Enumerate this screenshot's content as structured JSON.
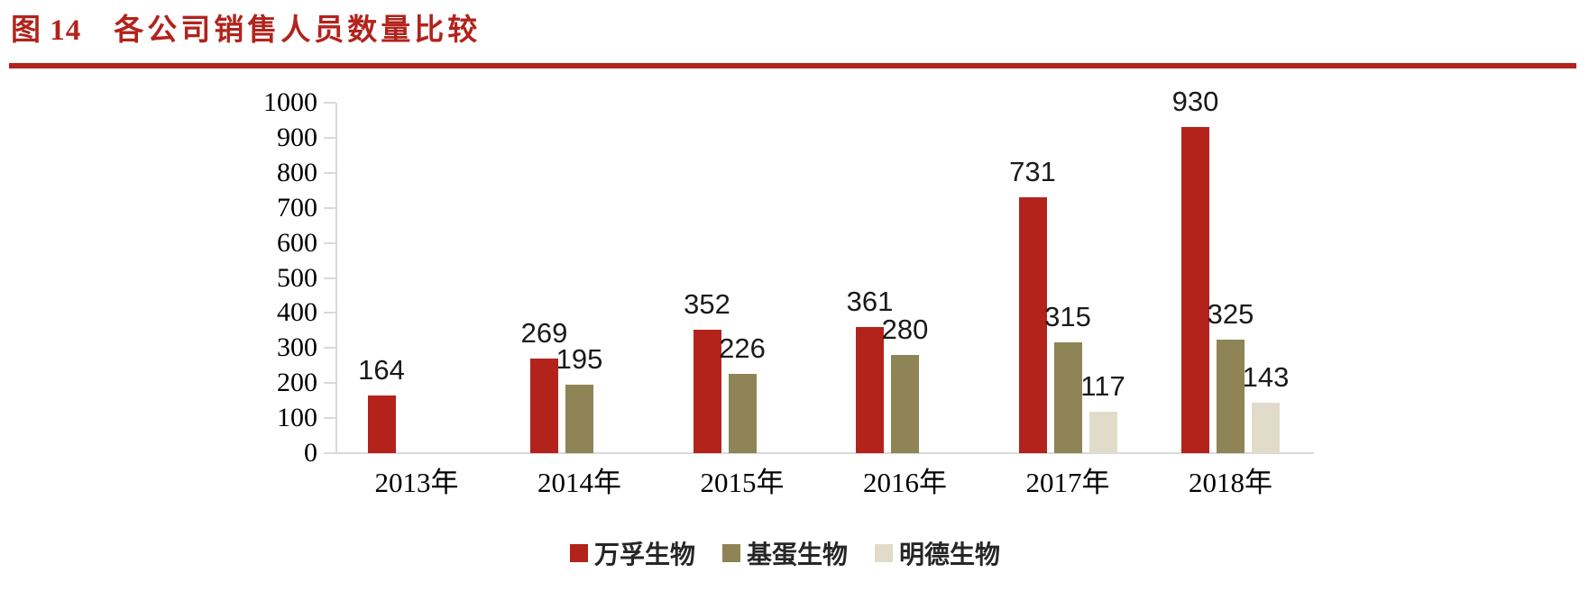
{
  "title": {
    "figure_label": "图 14",
    "text": "各公司销售人员数量比较"
  },
  "colors": {
    "accent_red": "#B2231C",
    "series_red": "#B3231B",
    "series_olive": "#8E8455",
    "series_beige": "#E0DCC9",
    "axis_line": "#D9D9D9",
    "label_text": "#1A1A1A"
  },
  "chart_data": {
    "type": "bar",
    "title": "各公司销售人员数量比较",
    "categories": [
      "2013年",
      "2014年",
      "2015年",
      "2016年",
      "2017年",
      "2018年"
    ],
    "series": [
      {
        "name": "万孚生物",
        "color": "#B3231B",
        "values": [
          164,
          269,
          352,
          361,
          731,
          930
        ]
      },
      {
        "name": "基蛋生物",
        "color": "#8E8455",
        "values": [
          null,
          195,
          226,
          280,
          315,
          325
        ]
      },
      {
        "name": "明德生物",
        "color": "#E0DCC9",
        "values": [
          null,
          null,
          null,
          null,
          117,
          143
        ]
      }
    ],
    "xlabel": "",
    "ylabel": "",
    "ylim": [
      0,
      1000
    ],
    "ytick_step": 100,
    "grid": false,
    "legend_position": "bottom",
    "data_labels": true
  }
}
